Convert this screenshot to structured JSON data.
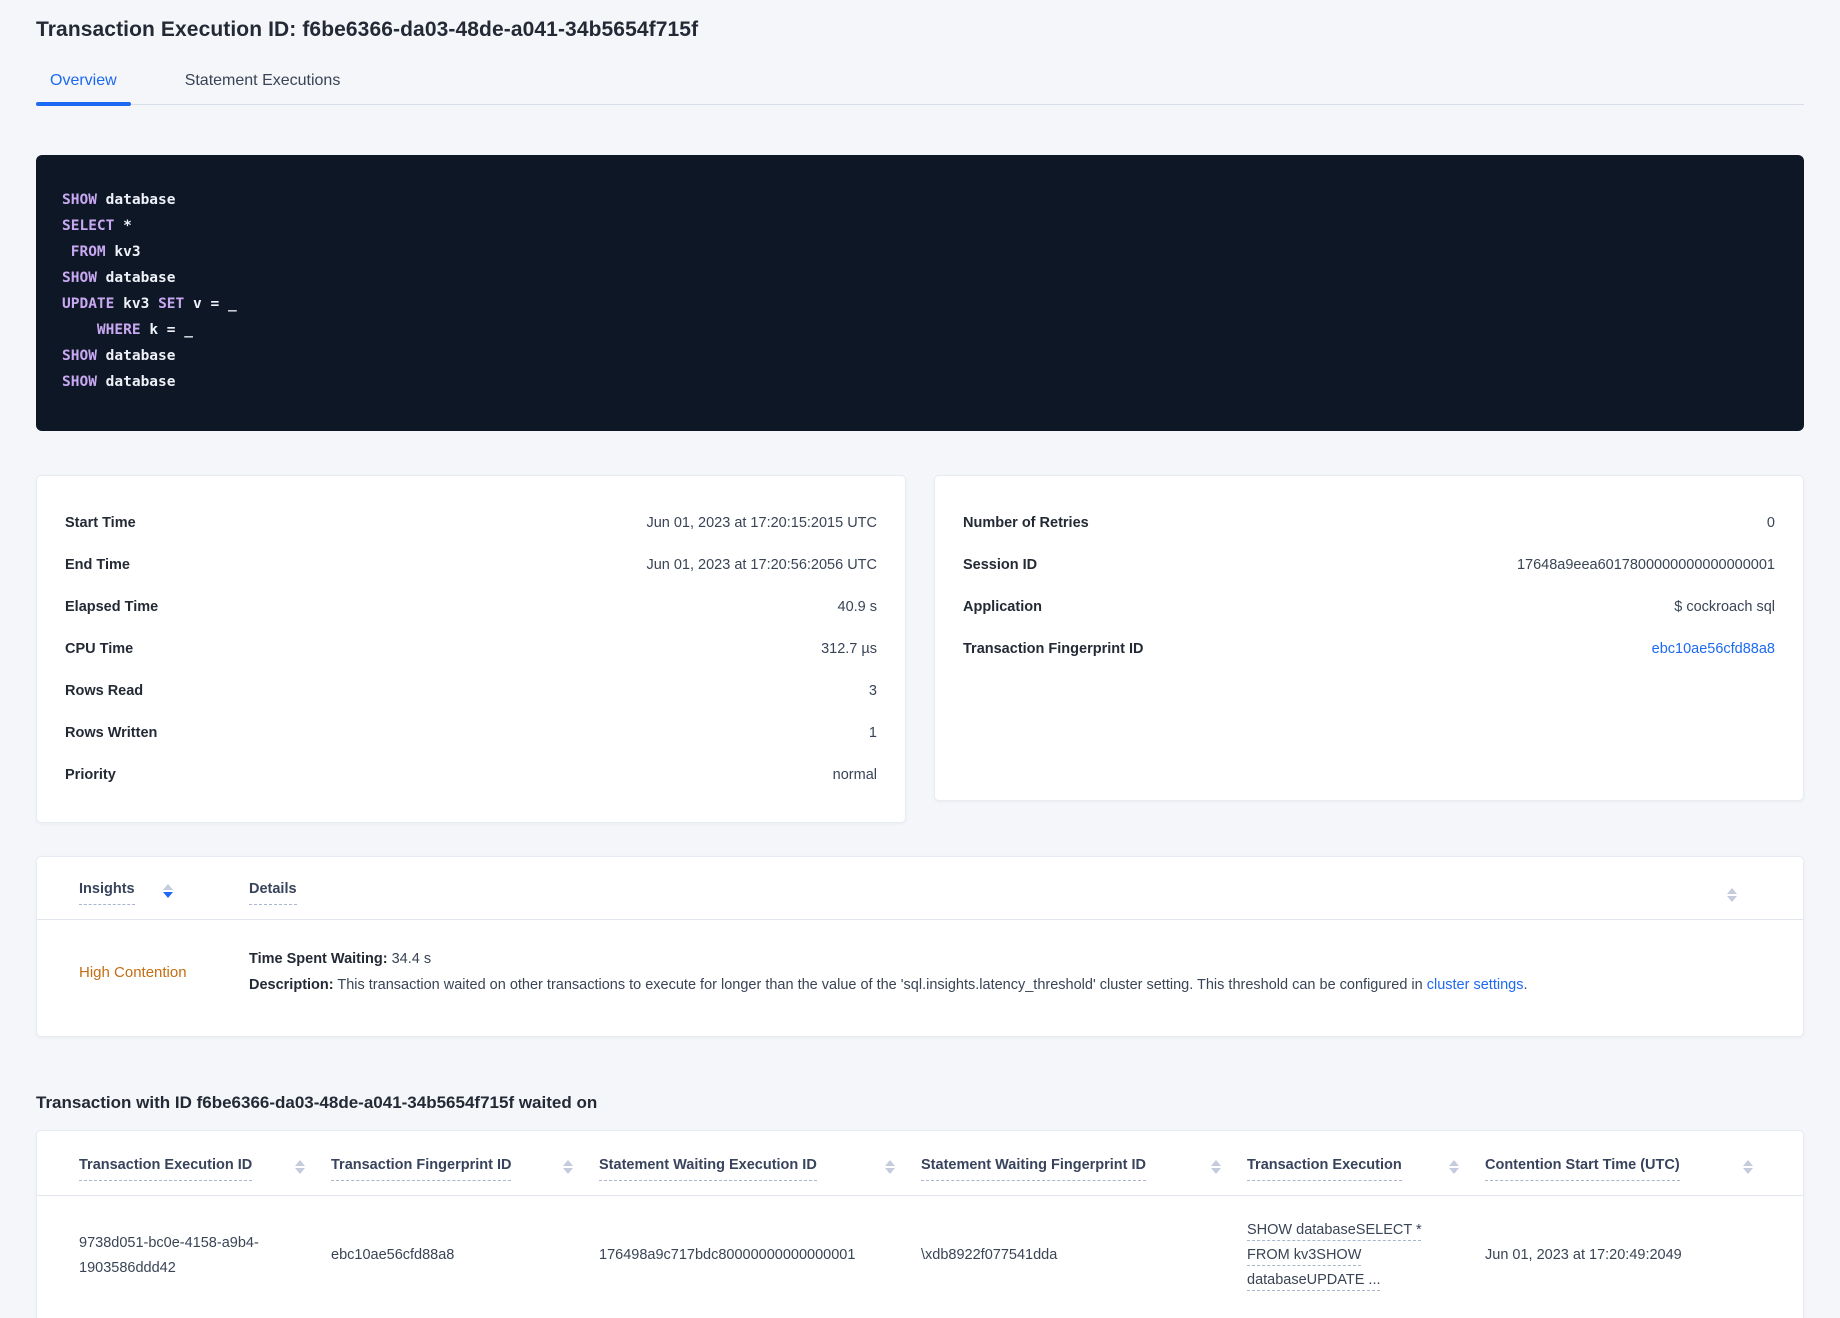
{
  "page": {
    "title": "Transaction Execution ID: f6be6366-da03-48de-a041-34b5654f715f"
  },
  "tabs": {
    "overview": "Overview",
    "statement_executions": "Statement Executions"
  },
  "sql": {
    "keywords": [
      "SHOW",
      "SELECT",
      "FROM",
      "UPDATE",
      "SET",
      "WHERE"
    ],
    "lines": [
      "SHOW database",
      "SELECT *",
      " FROM kv3",
      "SHOW database",
      "UPDATE kv3 SET v = _",
      "    WHERE k = _",
      "SHOW database",
      "SHOW database"
    ]
  },
  "summary_left": {
    "rows": [
      {
        "label": "Start Time",
        "value": "Jun 01, 2023 at 17:20:15:2015 UTC"
      },
      {
        "label": "End Time",
        "value": "Jun 01, 2023 at 17:20:56:2056 UTC"
      },
      {
        "label": "Elapsed Time",
        "value": "40.9 s"
      },
      {
        "label": "CPU Time",
        "value": "312.7 µs"
      },
      {
        "label": "Rows Read",
        "value": "3"
      },
      {
        "label": "Rows Written",
        "value": "1"
      },
      {
        "label": "Priority",
        "value": "normal"
      }
    ]
  },
  "summary_right": {
    "rows": [
      {
        "label": "Number of Retries",
        "value": "0"
      },
      {
        "label": "Session ID",
        "value": "17648a9eea6017800000000000000001"
      },
      {
        "label": "Application",
        "value": "$ cockroach sql"
      },
      {
        "label": "Transaction Fingerprint ID",
        "value": "ebc10ae56cfd88a8",
        "link": true
      }
    ]
  },
  "insights": {
    "col_insights": "Insights",
    "col_details": "Details",
    "row": {
      "insight_label": "High Contention",
      "waiting_label": "Time Spent Waiting:",
      "waiting_value": " 34.4 s",
      "description_label": "Description:",
      "description_text": " This transaction waited on other transactions to execute for longer than the value of the 'sql.insights.latency_threshold' cluster setting. This threshold can be configured in ",
      "description_link": "cluster settings",
      "description_suffix": "."
    }
  },
  "waited_on": {
    "heading": "Transaction with ID f6be6366-da03-48de-a041-34b5654f715f waited on",
    "columns": [
      "Transaction Execution ID",
      "Transaction Fingerprint ID",
      "Statement Waiting Execution ID",
      "Statement Waiting Fingerprint ID",
      "Transaction Execution",
      "Contention Start Time (UTC)"
    ],
    "row": {
      "transaction_execution_id": "9738d051-bc0e-4158-a9b4-1903586ddd42",
      "transaction_fingerprint_id": "ebc10ae56cfd88a8",
      "statement_waiting_execution_id": "176498a9c717bdc80000000000000001",
      "statement_waiting_fingerprint_id": "\\xdb8922f077541dda",
      "transaction_execution": "SHOW databaseSELECT * FROM kv3SHOW databaseUPDATE ...",
      "contention_start_time": "Jun 01, 2023 at 17:20:49:2049"
    }
  },
  "colors": {
    "accent_blue": "#1e69f2",
    "insight_orange": "#c46d12",
    "code_background": "#0e1726",
    "code_keyword": "#c9a8f2",
    "page_background": "#f4f6fa"
  }
}
